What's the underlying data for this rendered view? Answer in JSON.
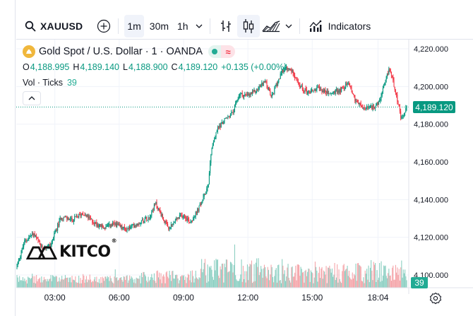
{
  "toolbar": {
    "symbol": "XAUUSD",
    "timeframes": [
      "1m",
      "30m",
      "1h"
    ],
    "active_timeframe": "1m",
    "indicators_label": "Indicators",
    "icons": [
      "search-icon",
      "add-icon",
      "chevron-down-icon",
      "bar-style-icon",
      "candle-style-icon",
      "area-style-icon",
      "chevron-down-icon",
      "indicators-icon"
    ]
  },
  "legend": {
    "title": "Gold Spot / U.S. Dollar · 1 · OANDA",
    "o_label": "O",
    "o_value": "4,188.995",
    "h_label": "H",
    "h_value": "4,189.140",
    "l_label": "L",
    "l_value": "4,188.900",
    "c_label": "C",
    "c_value": "4,189.120",
    "change": "+0.135 (+0.00%)",
    "volume_label": "Vol · Ticks",
    "volume_value": "39"
  },
  "watermark": {
    "text": "KITCO",
    "reg": "®"
  },
  "last_price_label": "4,189.120",
  "last_volume_label": "39",
  "colors": {
    "up": "#089981",
    "down": "#f23645",
    "vol_up": "#8ccfc2",
    "vol_down": "#f5a5aa",
    "grid": "#f0f3fa"
  },
  "chart_data": {
    "type": "candlestick",
    "symbol": "XAUUSD",
    "interval": "1m",
    "price_axis_ticks": [
      "4,220.000",
      "4,200.000",
      "4,180.000",
      "4,160.000",
      "4,140.000",
      "4,120.000",
      "4,100.000"
    ],
    "price_axis_values": [
      4220,
      4200,
      4180,
      4160,
      4140,
      4120,
      4100
    ],
    "time_axis_ticks": [
      "03:00",
      "06:00",
      "09:00",
      "12:00",
      "15:00",
      "18:04"
    ],
    "time_axis_hours": [
      3,
      6,
      9,
      12,
      15,
      18.067
    ],
    "x_range_hours": [
      1.2,
      19.5
    ],
    "y_range": [
      4095,
      4225
    ],
    "price_anchors": [
      {
        "t": 1.2,
        "p": 4104
      },
      {
        "t": 1.6,
        "p": 4118
      },
      {
        "t": 2.0,
        "p": 4122
      },
      {
        "t": 2.4,
        "p": 4114
      },
      {
        "t": 2.8,
        "p": 4116
      },
      {
        "t": 3.3,
        "p": 4131
      },
      {
        "t": 3.8,
        "p": 4129
      },
      {
        "t": 4.3,
        "p": 4133
      },
      {
        "t": 4.8,
        "p": 4128
      },
      {
        "t": 5.3,
        "p": 4125
      },
      {
        "t": 5.8,
        "p": 4127
      },
      {
        "t": 6.3,
        "p": 4124
      },
      {
        "t": 6.8,
        "p": 4127
      },
      {
        "t": 7.4,
        "p": 4131
      },
      {
        "t": 7.7,
        "p": 4138
      },
      {
        "t": 8.0,
        "p": 4131
      },
      {
        "t": 8.3,
        "p": 4124
      },
      {
        "t": 8.7,
        "p": 4130
      },
      {
        "t": 9.0,
        "p": 4132
      },
      {
        "t": 9.3,
        "p": 4128
      },
      {
        "t": 9.6,
        "p": 4133
      },
      {
        "t": 9.9,
        "p": 4140
      },
      {
        "t": 10.15,
        "p": 4148
      },
      {
        "t": 10.3,
        "p": 4167
      },
      {
        "t": 10.6,
        "p": 4178
      },
      {
        "t": 10.9,
        "p": 4182
      },
      {
        "t": 11.3,
        "p": 4186
      },
      {
        "t": 11.6,
        "p": 4196
      },
      {
        "t": 12.0,
        "p": 4195
      },
      {
        "t": 12.4,
        "p": 4198
      },
      {
        "t": 12.8,
        "p": 4203
      },
      {
        "t": 13.1,
        "p": 4194
      },
      {
        "t": 13.4,
        "p": 4203
      },
      {
        "t": 13.7,
        "p": 4210
      },
      {
        "t": 14.1,
        "p": 4208
      },
      {
        "t": 14.4,
        "p": 4200
      },
      {
        "t": 14.8,
        "p": 4197
      },
      {
        "t": 15.3,
        "p": 4199
      },
      {
        "t": 15.8,
        "p": 4196
      },
      {
        "t": 16.3,
        "p": 4198
      },
      {
        "t": 16.7,
        "p": 4202
      },
      {
        "t": 17.0,
        "p": 4193
      },
      {
        "t": 17.4,
        "p": 4188
      },
      {
        "t": 17.8,
        "p": 4189
      },
      {
        "t": 18.1,
        "p": 4191
      },
      {
        "t": 18.35,
        "p": 4200
      },
      {
        "t": 18.6,
        "p": 4210
      },
      {
        "t": 18.9,
        "p": 4197
      },
      {
        "t": 19.15,
        "p": 4182
      },
      {
        "t": 19.4,
        "p": 4189
      }
    ],
    "last_price": 4189.12,
    "last_volume_ticks": 39
  }
}
